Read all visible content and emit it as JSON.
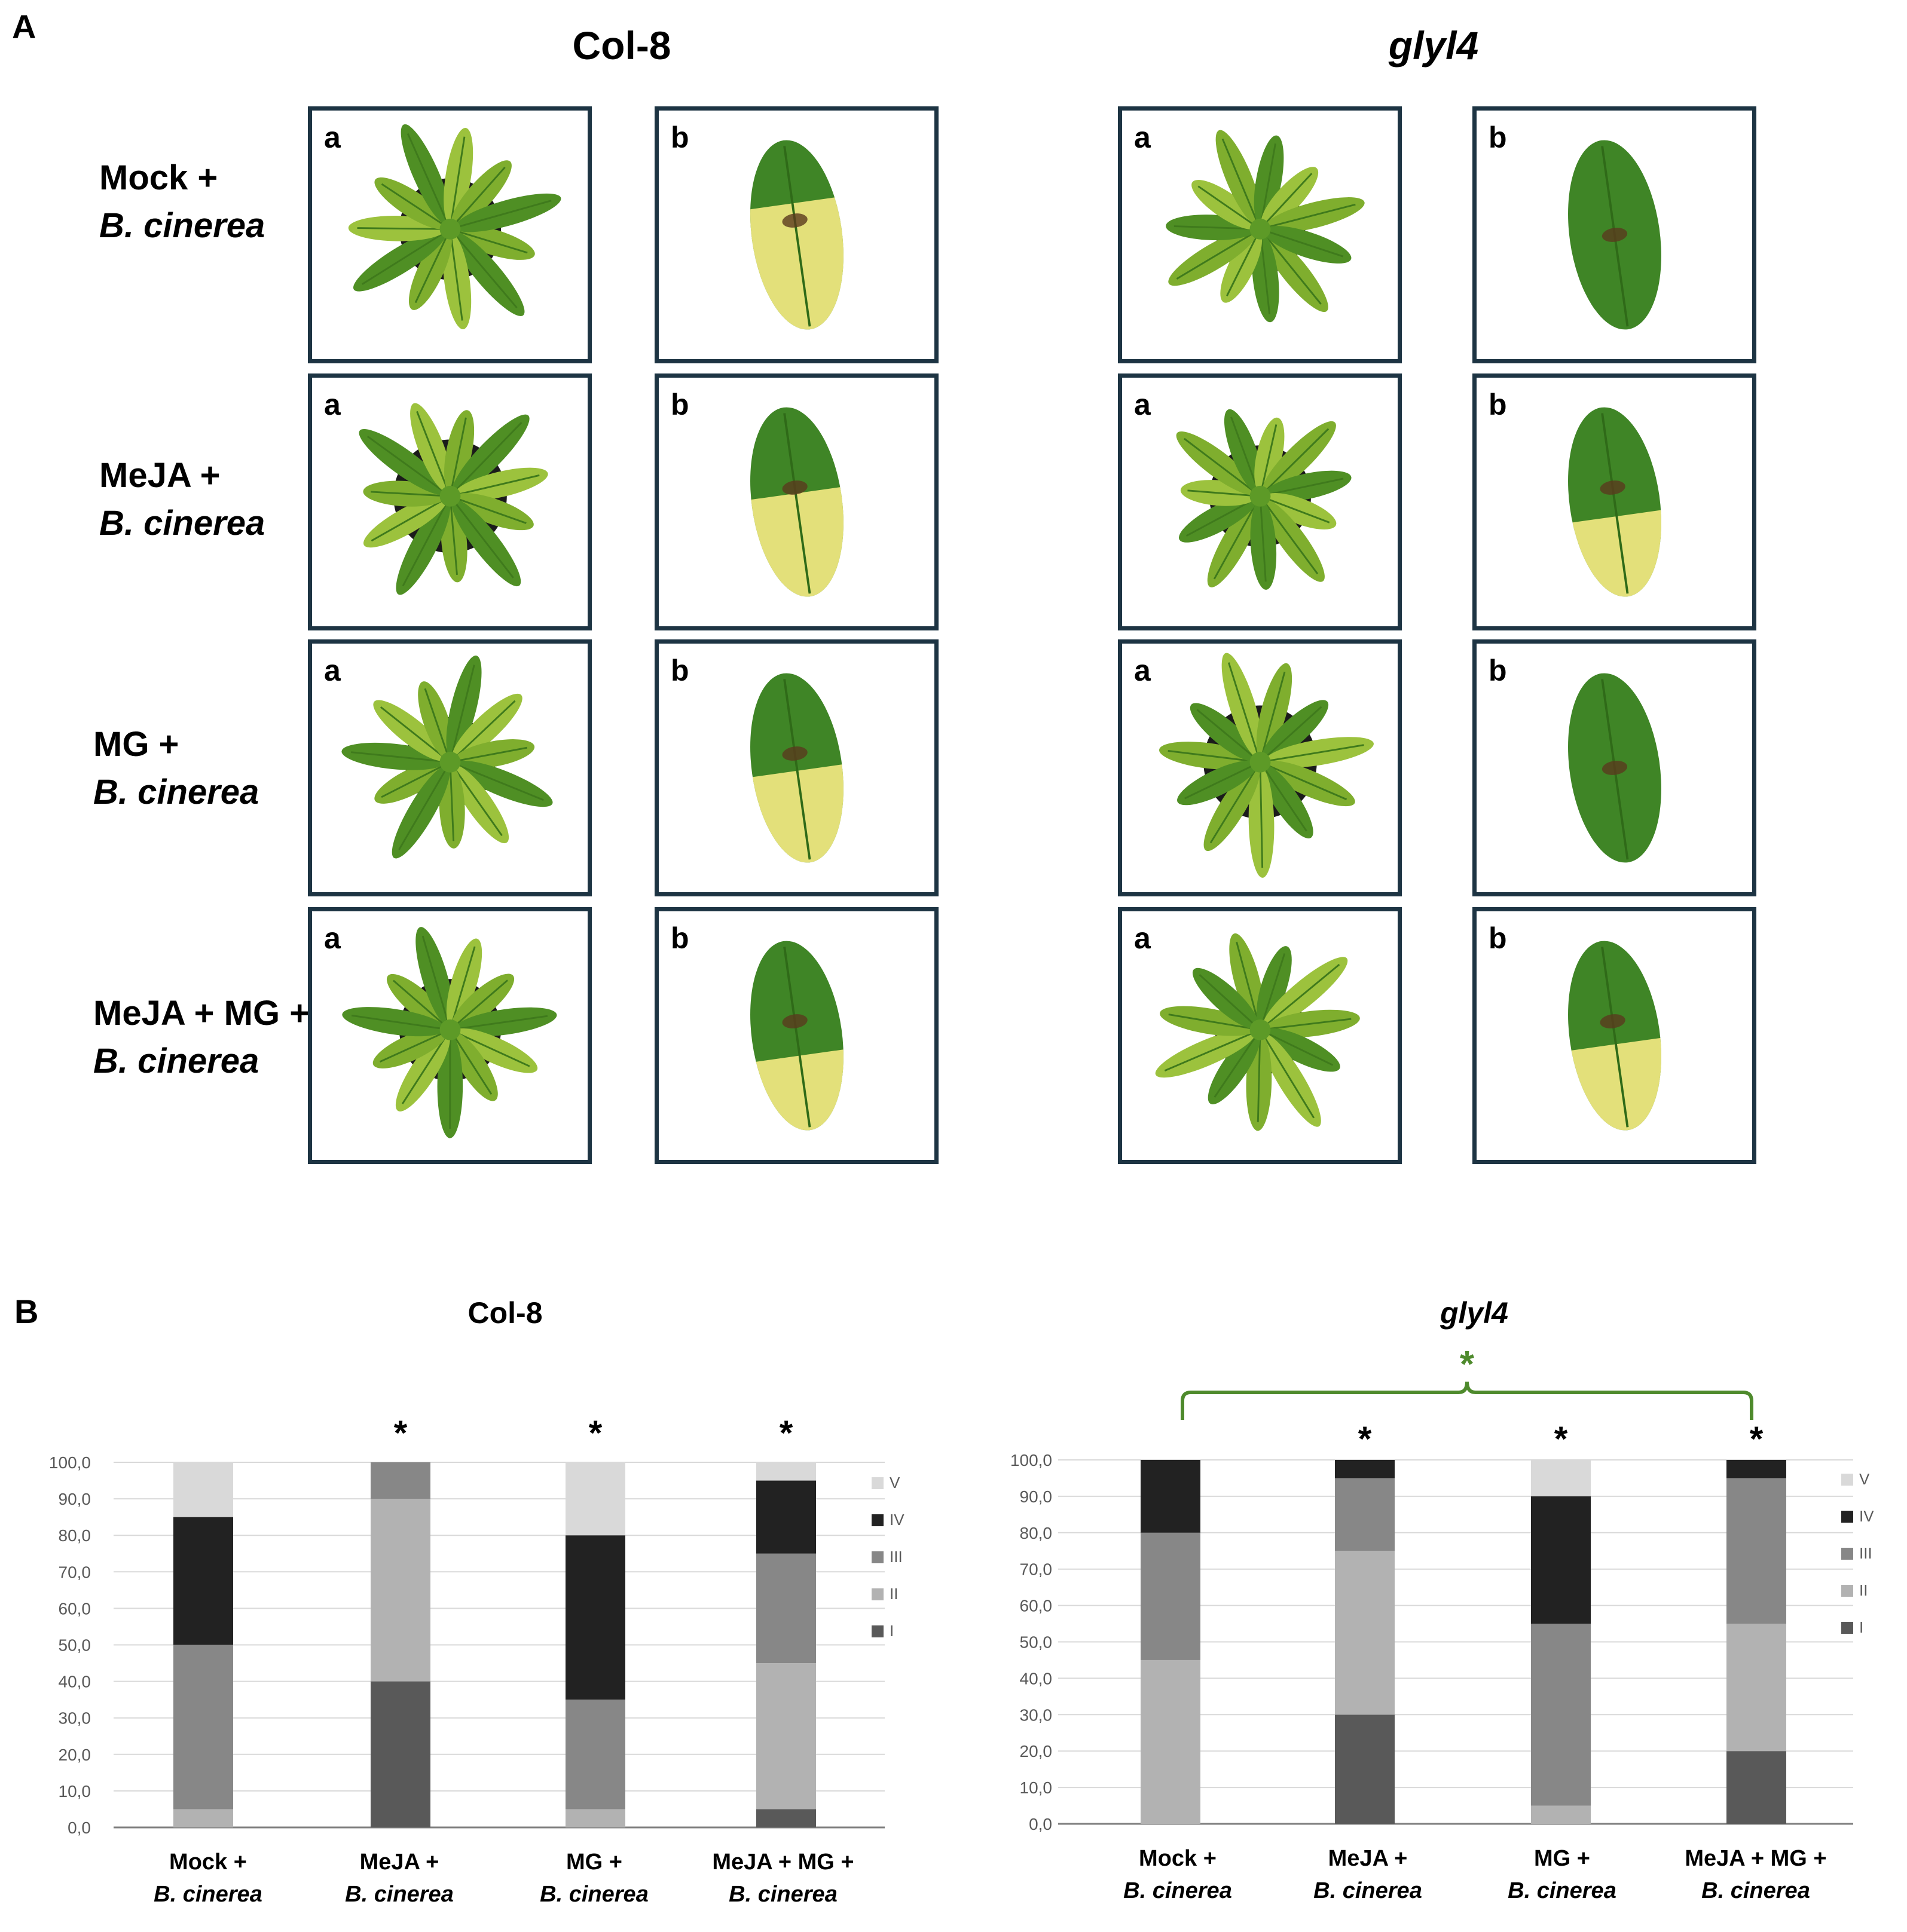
{
  "panel_a": {
    "letter": "A",
    "genotypes": [
      "Col-8",
      "glyl4"
    ],
    "subpanel_tags": [
      "a",
      "b"
    ],
    "rows": [
      {
        "line1": "Mock +",
        "line2": "B. cinerea"
      },
      {
        "line1": "MeJA +",
        "line2": "B. cinerea"
      },
      {
        "line1": "MG +",
        "line2": "B. cinerea"
      },
      {
        "line1": "MeJA + MG +",
        "line2": "B. cinerea"
      }
    ]
  },
  "panel_b": {
    "letter": "B"
  },
  "chart_data": [
    {
      "type": "bar",
      "stacked": true,
      "title": "Col-8",
      "categories": [
        [
          "Mock +",
          "B. cinerea"
        ],
        [
          "MeJA +",
          "B. cinerea"
        ],
        [
          "MG +",
          "B. cinerea"
        ],
        [
          "MeJA + MG +",
          "B. cinerea"
        ]
      ],
      "y_ticks": [
        "0,0",
        "10,0",
        "20,0",
        "30,0",
        "40,0",
        "50,0",
        "60,0",
        "70,0",
        "80,0",
        "90,0",
        "100,0"
      ],
      "ylim": [
        0,
        100
      ],
      "series": [
        {
          "name": "I",
          "color": "#595959",
          "values": [
            0,
            40,
            0,
            5
          ]
        },
        {
          "name": "II",
          "color": "#b2b2b2",
          "values": [
            5,
            50,
            5,
            40
          ]
        },
        {
          "name": "III",
          "color": "#878787",
          "values": [
            45,
            10,
            30,
            30
          ]
        },
        {
          "name": "IV",
          "color": "#222222",
          "values": [
            35,
            0,
            45,
            20
          ]
        },
        {
          "name": "V",
          "color": "#d9d9d9",
          "values": [
            15,
            0,
            20,
            5
          ]
        }
      ],
      "significance": [
        "",
        "*",
        "*",
        "*"
      ],
      "bracket": null
    },
    {
      "type": "bar",
      "stacked": true,
      "title": "glyl4",
      "categories": [
        [
          "Mock +",
          "B. cinerea"
        ],
        [
          "MeJA +",
          "B. cinerea"
        ],
        [
          "MG +",
          "B. cinerea"
        ],
        [
          "MeJA + MG +",
          "B. cinerea"
        ]
      ],
      "y_ticks": [
        "0,0",
        "10,0",
        "20,0",
        "30,0",
        "40,0",
        "50,0",
        "60,0",
        "70,0",
        "80,0",
        "90,0",
        "100,0"
      ],
      "ylim": [
        0,
        100
      ],
      "series": [
        {
          "name": "I",
          "color": "#595959",
          "values": [
            0,
            30,
            0,
            20
          ]
        },
        {
          "name": "II",
          "color": "#b2b2b2",
          "values": [
            45,
            45,
            5,
            35
          ]
        },
        {
          "name": "III",
          "color": "#878787",
          "values": [
            35,
            20,
            50,
            40
          ]
        },
        {
          "name": "IV",
          "color": "#222222",
          "values": [
            20,
            5,
            35,
            5
          ]
        },
        {
          "name": "V",
          "color": "#d9d9d9",
          "values": [
            0,
            0,
            10,
            0
          ]
        }
      ],
      "significance": [
        "",
        "*",
        "*",
        "*"
      ],
      "bracket": {
        "from": 0,
        "to": 3,
        "label": "*",
        "color": "#4e8a2c"
      }
    }
  ]
}
